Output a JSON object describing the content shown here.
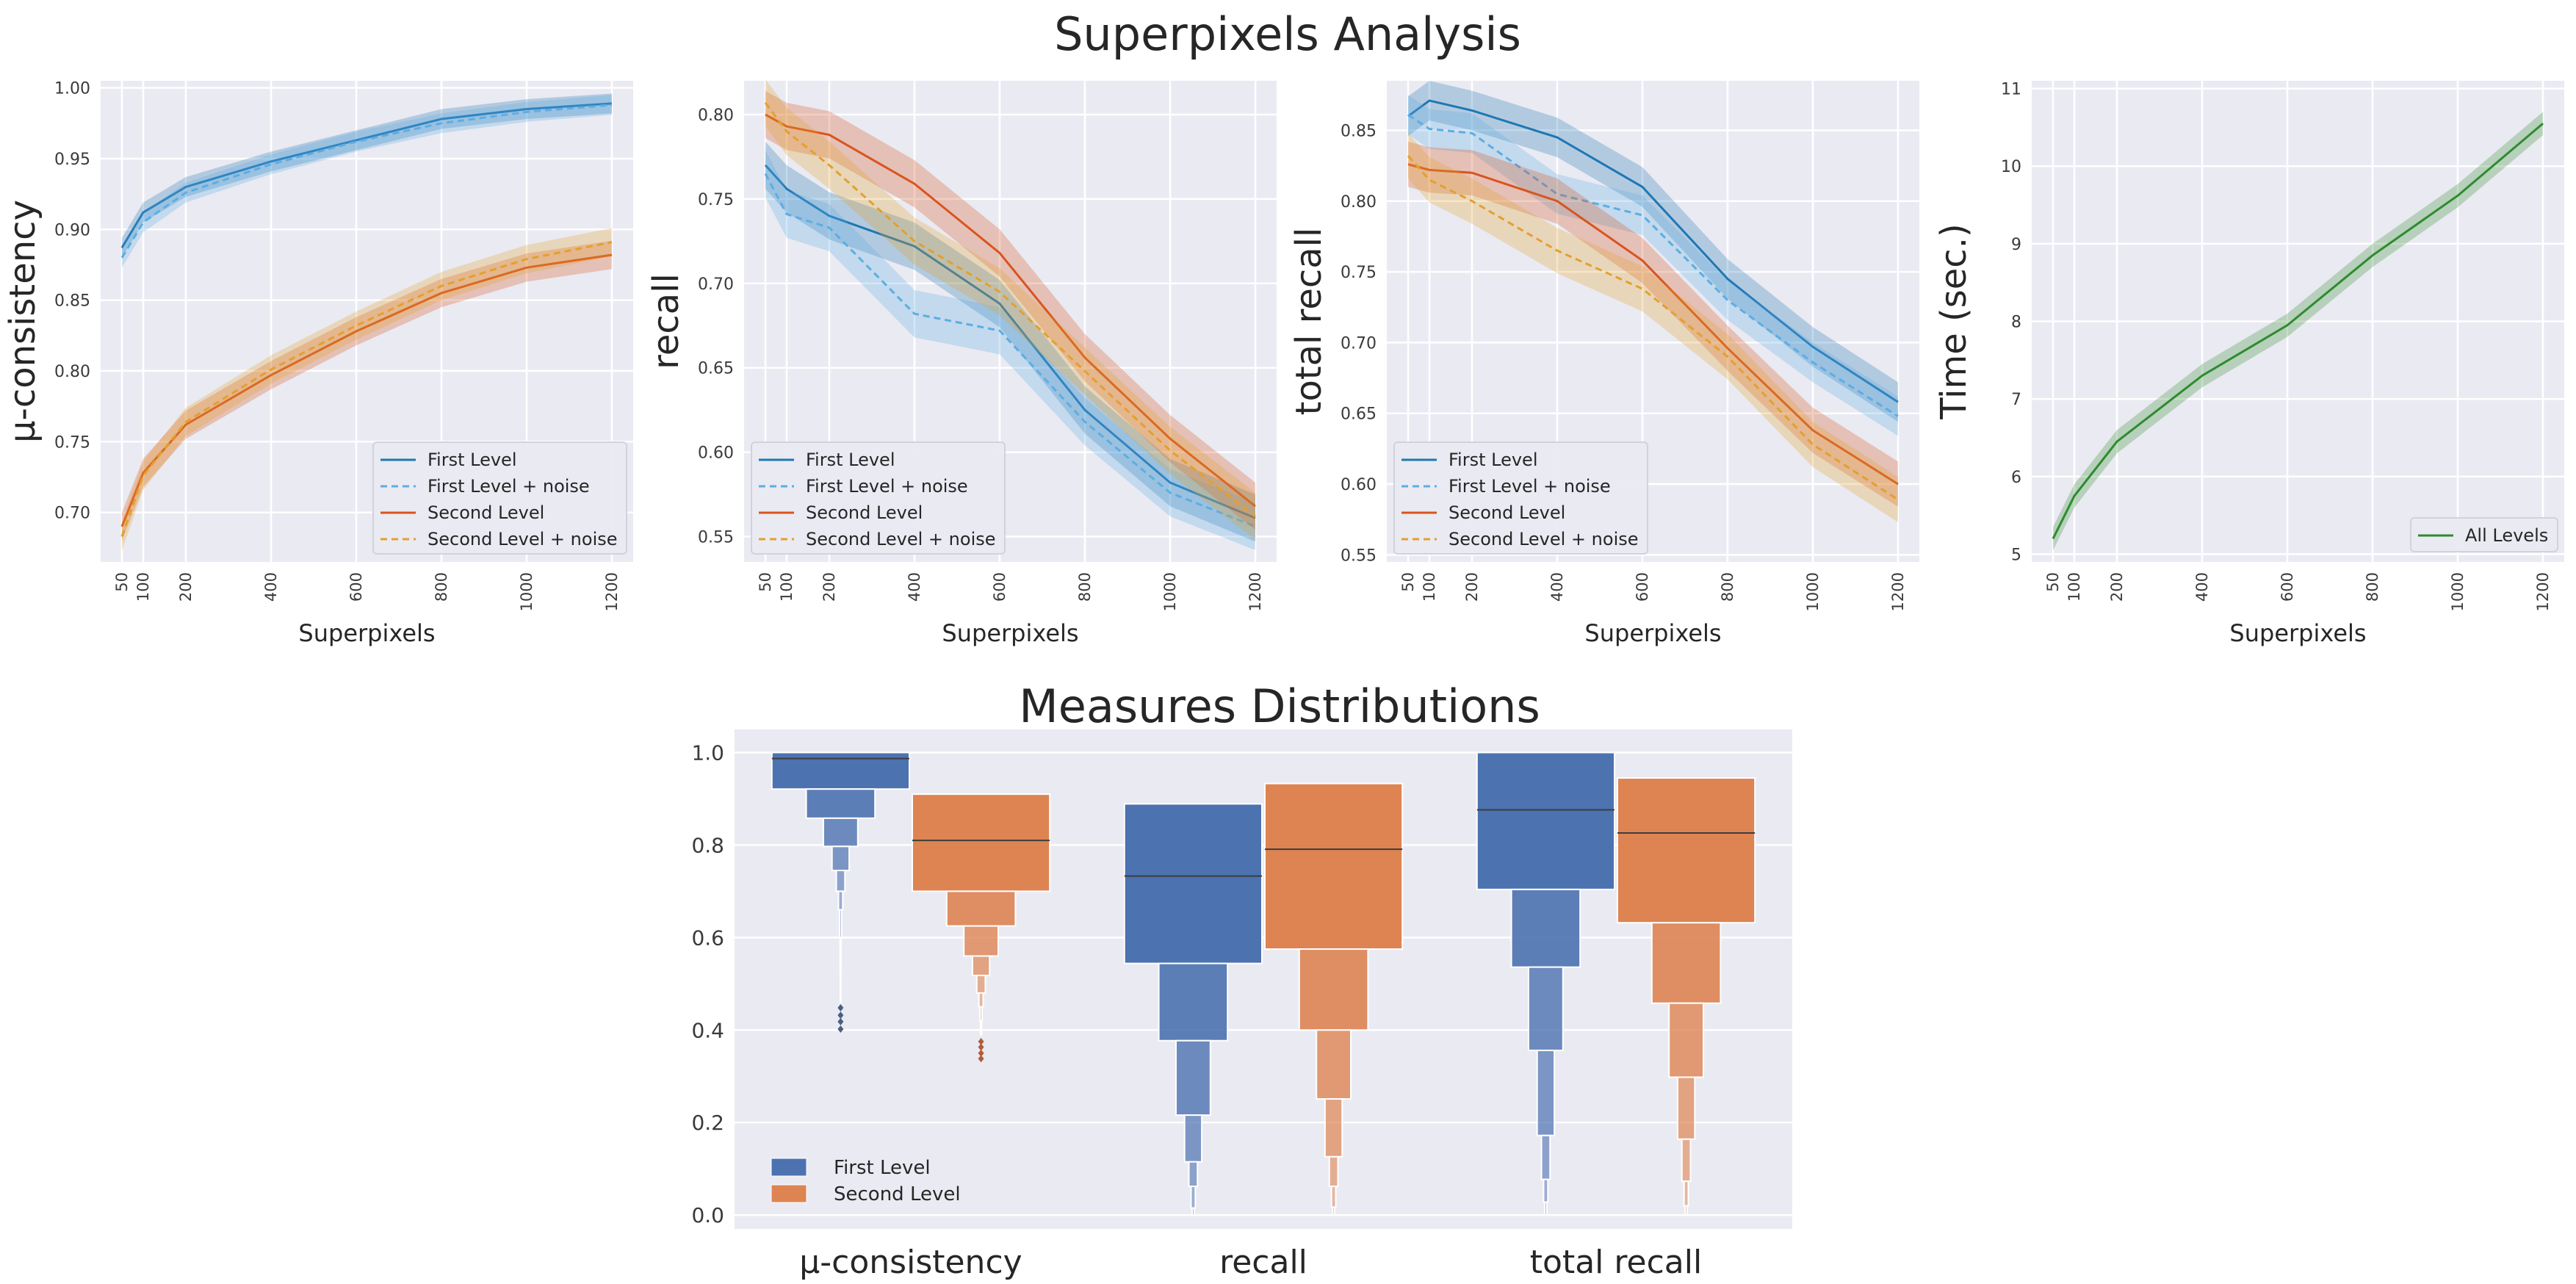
{
  "figure": {
    "top_title": "Superpixels Analysis",
    "bottom_title": "Measures Distributions"
  },
  "colors": {
    "first": "#1f77b4",
    "first_noise": "#5dade2",
    "second": "#d9541e",
    "second_noise": "#e3a02c",
    "all": "#2e8b2e",
    "box_first": "#4c72b0",
    "box_second": "#dd8452",
    "panel_bg": "#eaeaf2",
    "grid": "#ffffff"
  },
  "chart_data": [
    {
      "type": "line",
      "id": "mu",
      "xlabel": "Superpixels",
      "ylabel": "μ-consistency",
      "ylim": [
        0.665,
        1.005
      ],
      "yticks": [
        "0.70",
        "0.75",
        "0.80",
        "0.85",
        "0.90",
        "0.95",
        "1.00"
      ],
      "ytick_values": [
        0.7,
        0.75,
        0.8,
        0.85,
        0.9,
        0.95,
        1.0
      ],
      "x": [
        50,
        100,
        200,
        400,
        600,
        800,
        1000,
        1200
      ],
      "xlim": [
        0,
        1250
      ],
      "legend_position": "lower-right",
      "series": [
        {
          "name": "First Level",
          "style": "solid",
          "color_key": "first",
          "band": 0.007,
          "values": [
            0.887,
            0.912,
            0.93,
            0.948,
            0.963,
            0.978,
            0.985,
            0.989
          ]
        },
        {
          "name": "First Level + noise",
          "style": "dashed",
          "color_key": "first_noise",
          "band": 0.007,
          "values": [
            0.88,
            0.905,
            0.926,
            0.946,
            0.962,
            0.975,
            0.983,
            0.988
          ]
        },
        {
          "name": "Second Level",
          "style": "solid",
          "color_key": "second",
          "band": 0.01,
          "values": [
            0.69,
            0.728,
            0.762,
            0.797,
            0.828,
            0.855,
            0.873,
            0.882
          ]
        },
        {
          "name": "Second Level + noise",
          "style": "dashed",
          "color_key": "second_noise",
          "band": 0.01,
          "values": [
            0.683,
            0.726,
            0.764,
            0.801,
            0.832,
            0.86,
            0.879,
            0.891
          ]
        }
      ]
    },
    {
      "type": "line",
      "id": "recall",
      "xlabel": "Superpixels",
      "ylabel": "recall",
      "ylim": [
        0.535,
        0.82
      ],
      "yticks": [
        "0.55",
        "0.60",
        "0.65",
        "0.70",
        "0.75",
        "0.80"
      ],
      "ytick_values": [
        0.55,
        0.6,
        0.65,
        0.7,
        0.75,
        0.8
      ],
      "x": [
        50,
        100,
        200,
        400,
        600,
        800,
        1000,
        1200
      ],
      "xlim": [
        0,
        1250
      ],
      "legend_position": "lower-left",
      "series": [
        {
          "name": "First Level",
          "style": "solid",
          "color_key": "first",
          "band": 0.014,
          "values": [
            0.77,
            0.756,
            0.74,
            0.722,
            0.688,
            0.625,
            0.582,
            0.561
          ]
        },
        {
          "name": "First Level + noise",
          "style": "dashed",
          "color_key": "first_noise",
          "band": 0.014,
          "values": [
            0.765,
            0.741,
            0.733,
            0.682,
            0.672,
            0.618,
            0.576,
            0.556
          ]
        },
        {
          "name": "Second Level",
          "style": "solid",
          "color_key": "second",
          "band": 0.014,
          "values": [
            0.8,
            0.793,
            0.788,
            0.759,
            0.718,
            0.656,
            0.608,
            0.568
          ]
        },
        {
          "name": "Second Level + noise",
          "style": "dashed",
          "color_key": "second_noise",
          "band": 0.014,
          "values": [
            0.807,
            0.79,
            0.77,
            0.725,
            0.695,
            0.648,
            0.601,
            0.562
          ]
        }
      ]
    },
    {
      "type": "line",
      "id": "total_recall",
      "xlabel": "Superpixels",
      "ylabel": "total recall",
      "ylim": [
        0.545,
        0.885
      ],
      "yticks": [
        "0.55",
        "0.60",
        "0.65",
        "0.70",
        "0.75",
        "0.80",
        "0.85"
      ],
      "ytick_values": [
        0.55,
        0.6,
        0.65,
        0.7,
        0.75,
        0.8,
        0.85
      ],
      "x": [
        50,
        100,
        200,
        400,
        600,
        800,
        1000,
        1200
      ],
      "xlim": [
        0,
        1250
      ],
      "legend_position": "lower-left",
      "series": [
        {
          "name": "First Level",
          "style": "solid",
          "color_key": "first",
          "band": 0.014,
          "values": [
            0.86,
            0.871,
            0.864,
            0.845,
            0.81,
            0.745,
            0.697,
            0.658
          ]
        },
        {
          "name": "First Level + noise",
          "style": "dashed",
          "color_key": "first_noise",
          "band": 0.014,
          "values": [
            0.861,
            0.851,
            0.848,
            0.805,
            0.79,
            0.73,
            0.686,
            0.648
          ]
        },
        {
          "name": "Second Level",
          "style": "solid",
          "color_key": "second",
          "band": 0.016,
          "values": [
            0.826,
            0.822,
            0.82,
            0.8,
            0.758,
            0.696,
            0.638,
            0.6
          ]
        },
        {
          "name": "Second Level + noise",
          "style": "dashed",
          "color_key": "second_noise",
          "band": 0.016,
          "values": [
            0.832,
            0.815,
            0.8,
            0.765,
            0.738,
            0.69,
            0.628,
            0.589
          ]
        }
      ]
    },
    {
      "type": "line",
      "id": "time",
      "xlabel": "Superpixels",
      "ylabel": "Time (sec.)",
      "ylim": [
        4.9,
        11.1
      ],
      "yticks": [
        "5",
        "6",
        "7",
        "8",
        "9",
        "10",
        "11"
      ],
      "ytick_values": [
        5,
        6,
        7,
        8,
        9,
        10,
        11
      ],
      "x": [
        50,
        100,
        200,
        400,
        600,
        800,
        1000,
        1200
      ],
      "xlim": [
        0,
        1250
      ],
      "legend_position": "lower-right",
      "series": [
        {
          "name": "All Levels",
          "style": "solid",
          "color_key": "all",
          "band": 0.15,
          "values": [
            5.2,
            5.75,
            6.45,
            7.3,
            7.95,
            8.85,
            9.62,
            10.55
          ]
        }
      ]
    },
    {
      "type": "boxen",
      "id": "distributions",
      "ylim": [
        -0.03,
        1.05
      ],
      "yticks": [
        "0.0",
        "0.2",
        "0.4",
        "0.6",
        "0.8",
        "1.0"
      ],
      "ytick_values": [
        0.0,
        0.2,
        0.4,
        0.6,
        0.8,
        1.0
      ],
      "categories": [
        "μ-consistency",
        "recall",
        "total recall"
      ],
      "legend_position": "lower-left",
      "series": [
        {
          "name": "First Level",
          "color_key": "box_first",
          "groups": [
            {
              "median": 0.987,
              "levels": [
                [
                  0.921,
                  1.0
                ],
                [
                  0.858,
                  0.921
                ],
                [
                  0.797,
                  0.858
                ],
                [
                  0.745,
                  0.797
                ],
                [
                  0.7,
                  0.745
                ],
                [
                  0.66,
                  0.7
                ],
                [
                  0.6,
                  0.66
                ],
                [
                  0.53,
                  0.6
                ],
                [
                  0.46,
                  0.53
                ]
              ],
              "outliers": [
                0.448,
                0.432,
                0.418,
                0.402
              ]
            },
            {
              "median": 0.733,
              "levels": [
                [
                  0.544,
                  0.889
                ],
                [
                  0.377,
                  0.544
                ],
                [
                  0.216,
                  0.377
                ],
                [
                  0.115,
                  0.216
                ],
                [
                  0.062,
                  0.115
                ],
                [
                  0.015,
                  0.062
                ],
                [
                  0.0,
                  0.015
                ]
              ],
              "outliers": []
            },
            {
              "median": 0.876,
              "levels": [
                [
                  0.704,
                  1.0
                ],
                [
                  0.536,
                  0.704
                ],
                [
                  0.356,
                  0.536
                ],
                [
                  0.172,
                  0.356
                ],
                [
                  0.077,
                  0.172
                ],
                [
                  0.028,
                  0.077
                ],
                [
                  0.0,
                  0.028
                ]
              ],
              "outliers": []
            }
          ]
        },
        {
          "name": "Second Level",
          "color_key": "box_second",
          "groups": [
            {
              "median": 0.81,
              "levels": [
                [
                  0.7,
                  0.91
                ],
                [
                  0.625,
                  0.7
                ],
                [
                  0.56,
                  0.625
                ],
                [
                  0.518,
                  0.56
                ],
                [
                  0.48,
                  0.518
                ],
                [
                  0.45,
                  0.48
                ],
                [
                  0.42,
                  0.45
                ],
                [
                  0.39,
                  0.42
                ]
              ],
              "outliers": [
                0.375,
                0.363,
                0.35,
                0.338
              ]
            },
            {
              "median": 0.791,
              "levels": [
                [
                  0.575,
                  0.933
                ],
                [
                  0.4,
                  0.575
                ],
                [
                  0.251,
                  0.4
                ],
                [
                  0.126,
                  0.251
                ],
                [
                  0.062,
                  0.126
                ],
                [
                  0.017,
                  0.062
                ],
                [
                  0.0,
                  0.017
                ]
              ],
              "outliers": []
            },
            {
              "median": 0.826,
              "levels": [
                [
                  0.632,
                  0.945
                ],
                [
                  0.458,
                  0.632
                ],
                [
                  0.298,
                  0.458
                ],
                [
                  0.164,
                  0.298
                ],
                [
                  0.073,
                  0.164
                ],
                [
                  0.02,
                  0.073
                ],
                [
                  0.0,
                  0.02
                ]
              ],
              "outliers": []
            }
          ]
        }
      ]
    }
  ]
}
